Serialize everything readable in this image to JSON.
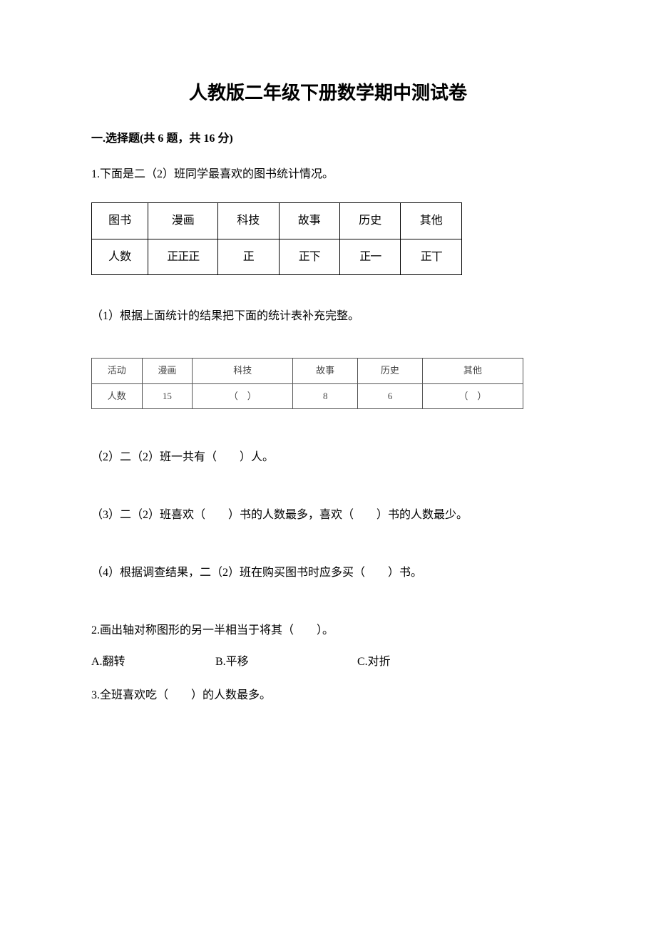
{
  "title": "人教版二年级下册数学期中测试卷",
  "section1": {
    "header": "一.选择题(共 6 题，共 16 分)"
  },
  "q1": {
    "stem": "1.下面是二（2）班同学最喜欢的图书统计情况。",
    "table1": {
      "header": [
        "图书",
        "漫画",
        "科技",
        "故事",
        "历史",
        "其他"
      ],
      "row_label": "人数",
      "tally": [
        "正正正",
        "正",
        "正下",
        "正一",
        "正丅"
      ]
    },
    "sub1": "（1）根据上面统计的结果把下面的统计表补充完整。",
    "table2": {
      "header": [
        "活动",
        "漫画",
        "科技",
        "故事",
        "历史",
        "其他"
      ],
      "row_label": "人数",
      "values": [
        "15",
        "（　）",
        "8",
        "6",
        "（　）"
      ]
    },
    "sub2": "（2）二（2）班一共有（　　）人。",
    "sub3": "（3）二（2）班喜欢（　　）书的人数最多，喜欢（　　）书的人数最少。",
    "sub4": "（4）根据调查结果，二（2）班在购买图书时应多买（　　）书。"
  },
  "q2": {
    "stem": "2.画出轴对称图形的另一半相当于将其（　　）。",
    "optA": "A.翻转",
    "optB": "B.平移",
    "optC": "C.对折"
  },
  "q3": {
    "stem": "3.全班喜欢吃（　　）的人数最多。"
  }
}
